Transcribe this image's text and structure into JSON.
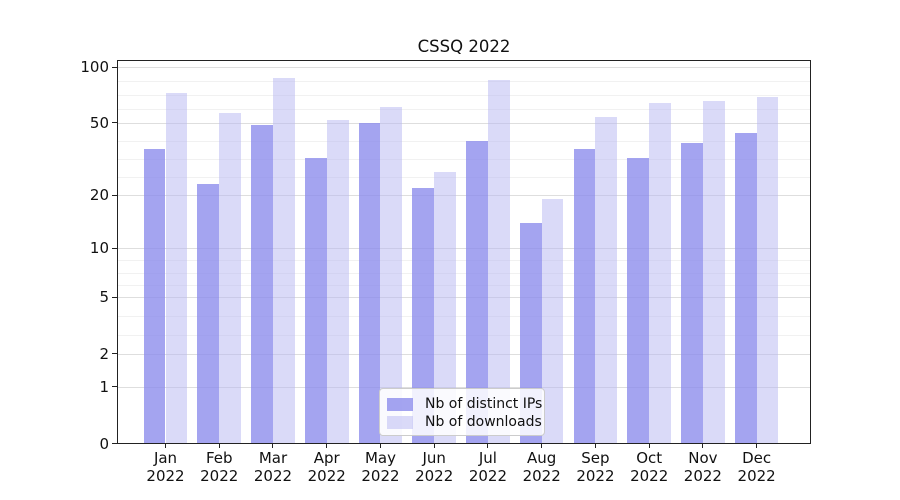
{
  "chart_data": {
    "type": "bar",
    "title": "CSSQ 2022",
    "categories": [
      "Jan",
      "Feb",
      "Mar",
      "Apr",
      "May",
      "Jun",
      "Jul",
      "Aug",
      "Sep",
      "Oct",
      "Nov",
      "Dec"
    ],
    "year": "2022",
    "series": [
      {
        "name": "Nb of distinct IPs",
        "color": "rgba(138,138,236,0.78)",
        "color_hex": "#a8a8f0",
        "values": [
          36,
          23,
          49,
          32,
          50,
          22,
          40,
          14,
          36,
          32,
          39,
          44
        ]
      },
      {
        "name": "Nb of downloads",
        "color": "rgba(185,185,242,0.52)",
        "color_hex": "#dcdcf8",
        "values": [
          73,
          57,
          88,
          52,
          61,
          27,
          85,
          19,
          54,
          64,
          66,
          69
        ]
      }
    ],
    "xlabel": "",
    "ylabel": "",
    "y_scale": "log10(1+x)",
    "y_ticks": [
      0,
      1,
      2,
      5,
      10,
      20,
      50,
      100
    ],
    "y_minor_segments": [
      [
        100,
        50,
        4
      ],
      [
        50,
        20,
        4
      ],
      [
        10,
        5,
        4
      ],
      [
        5,
        2,
        3
      ]
    ],
    "ylim": [
      0,
      110
    ],
    "grid": true,
    "grid_major_color": "#dedede",
    "grid_minor_color": "#f1f1f1",
    "legend_position": "lower center"
  }
}
